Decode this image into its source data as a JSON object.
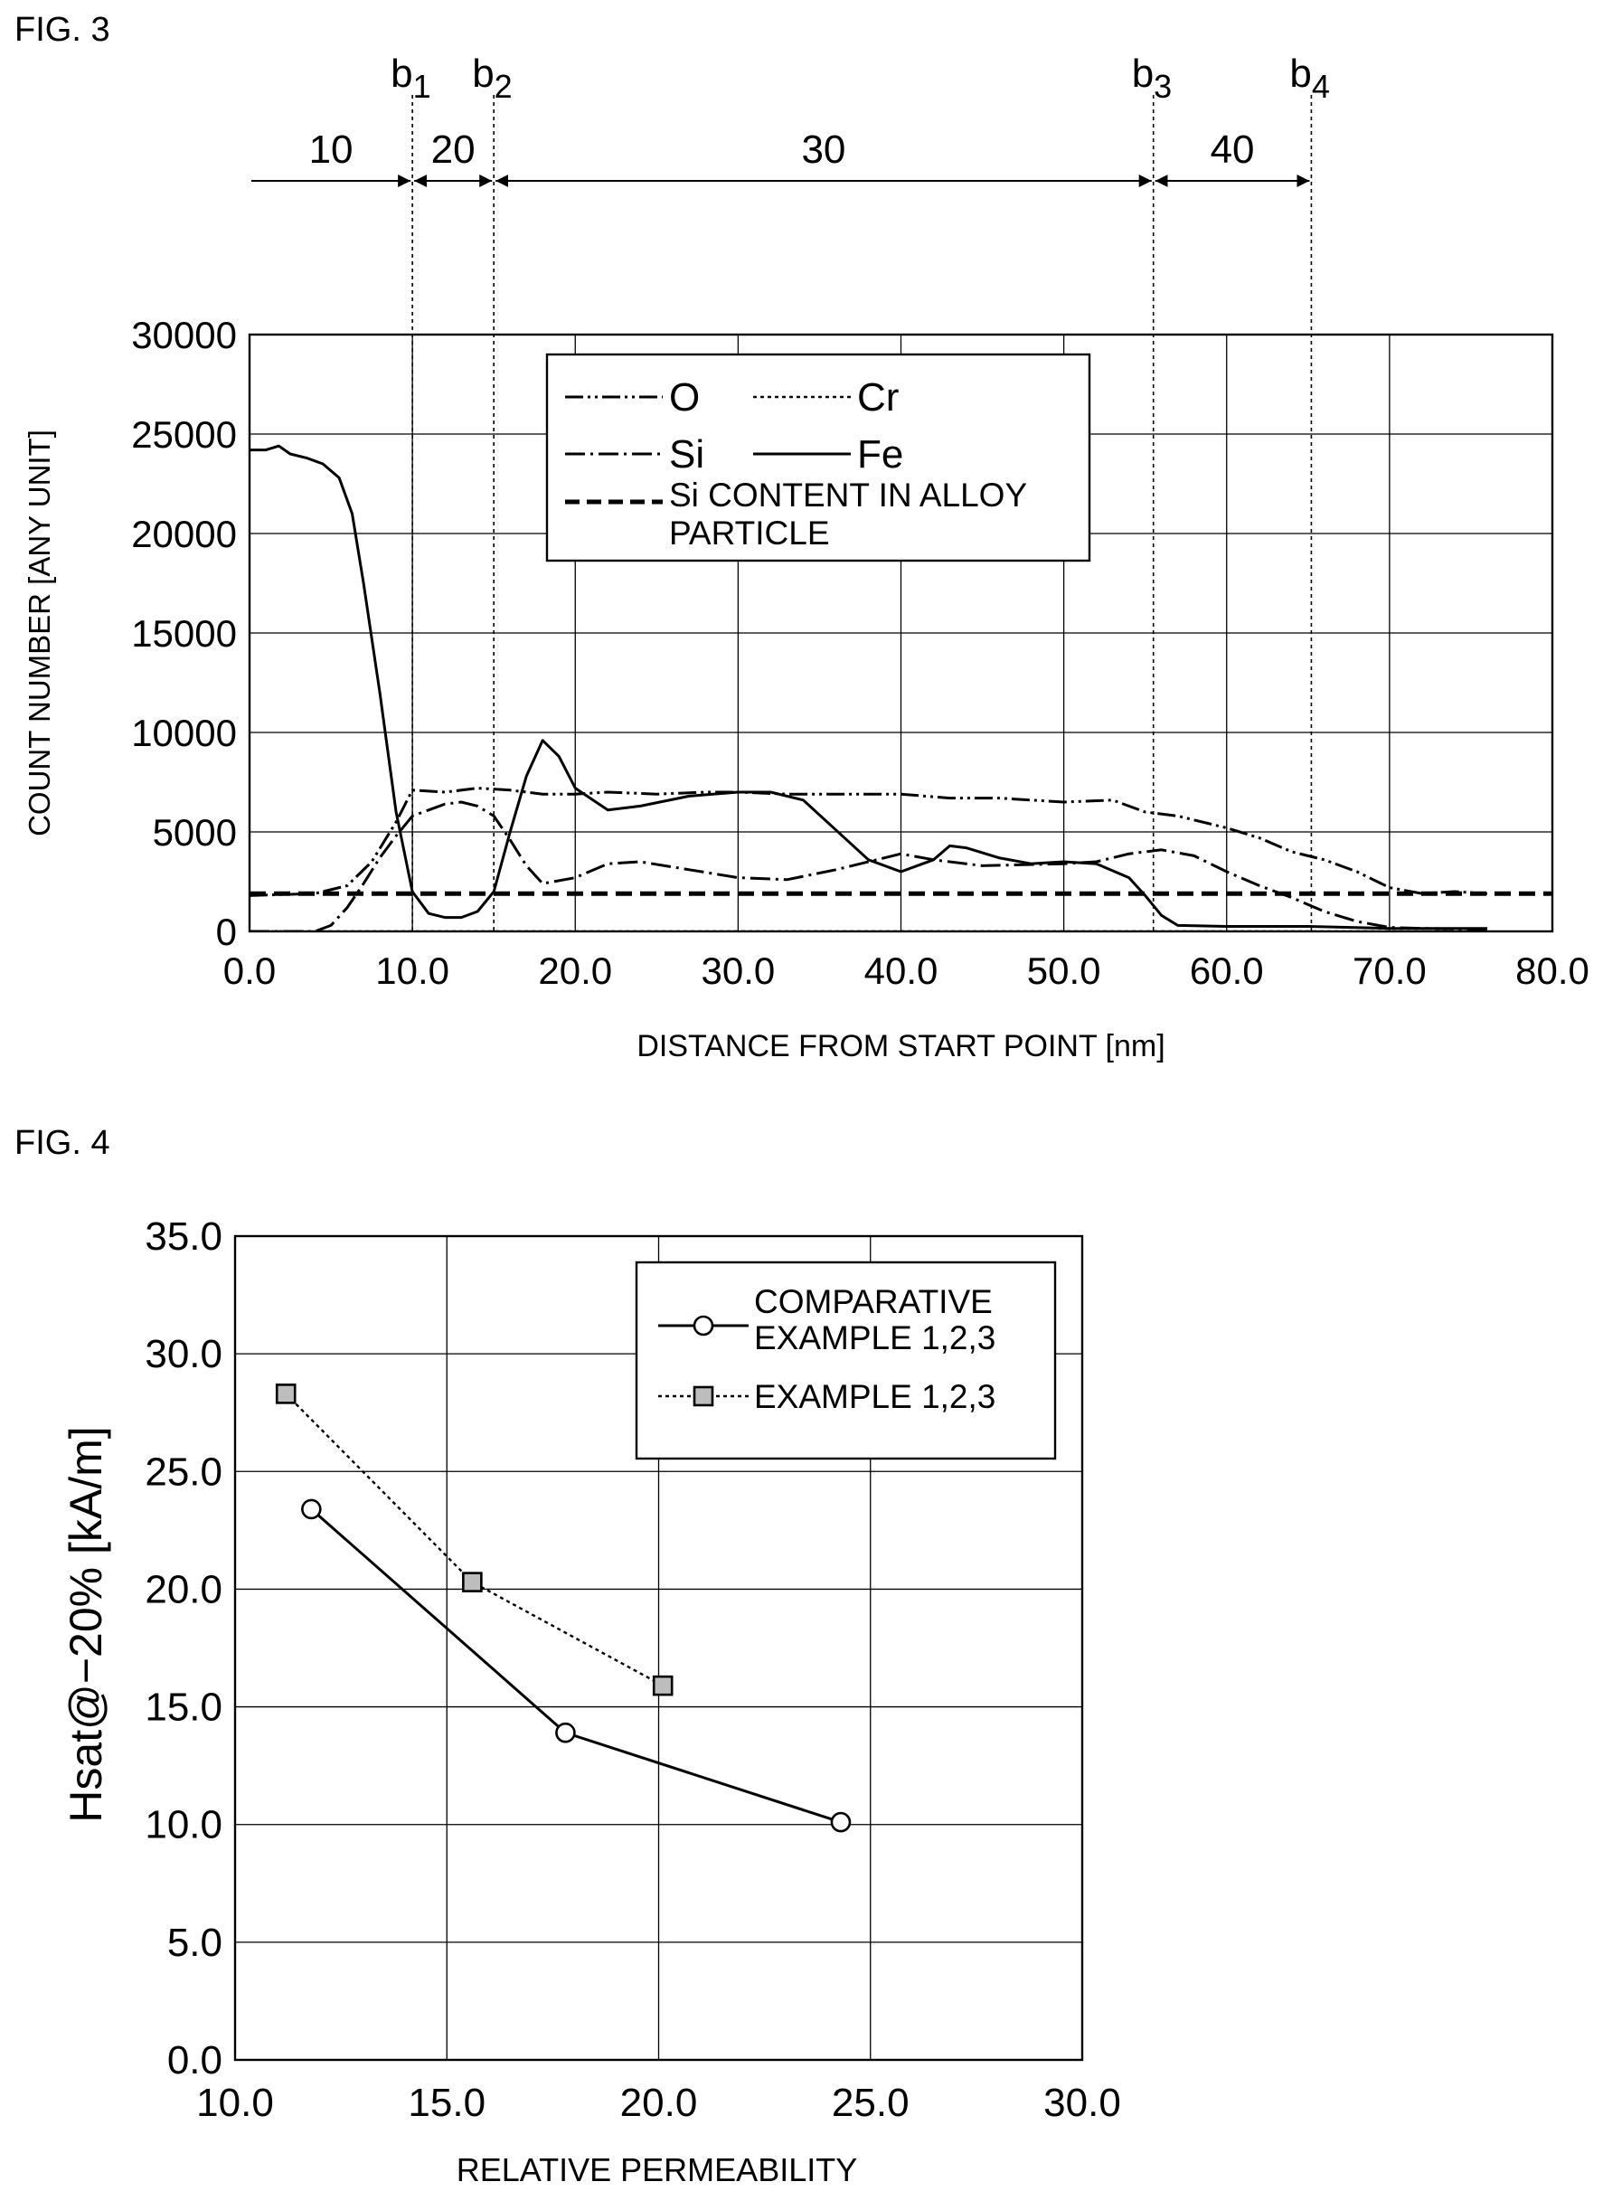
{
  "figures": {
    "fig3_label": "FIG. 3",
    "fig4_label": "FIG. 4"
  },
  "chart_data": [
    {
      "type": "line",
      "xlabel": "DISTANCE FROM START POINT [nm]",
      "ylabel": "COUNT NUMBER [ANY UNIT]",
      "xlim": [
        0,
        80
      ],
      "ylim": [
        0,
        30000
      ],
      "x_ticks": [
        "0.0",
        "10.0",
        "20.0",
        "30.0",
        "40.0",
        "50.0",
        "60.0",
        "70.0",
        "80.0"
      ],
      "y_ticks": [
        "0",
        "5000",
        "10000",
        "15000",
        "20000",
        "25000",
        "30000"
      ],
      "grid": true,
      "legend_position": "top-center",
      "boundaries": [
        {
          "label": "b",
          "sub": "1",
          "x": 10.0
        },
        {
          "label": "b",
          "sub": "2",
          "x": 15.0
        },
        {
          "label": "b",
          "sub": "3",
          "x": 55.5
        },
        {
          "label": "b",
          "sub": "4",
          "x": 65.2
        }
      ],
      "regions": [
        {
          "label": "10",
          "from": 0.0,
          "to": 10.0
        },
        {
          "label": "20",
          "from": 10.0,
          "to": 15.0
        },
        {
          "label": "30",
          "from": 15.0,
          "to": 55.5
        },
        {
          "label": "40",
          "from": 55.5,
          "to": 65.2
        }
      ],
      "series": [
        {
          "name": "O",
          "style": "dash-dot-dot",
          "points": [
            [
              0,
              1800
            ],
            [
              4,
              1900
            ],
            [
              6,
              2300
            ],
            [
              7.5,
              3500
            ],
            [
              9,
              5500
            ],
            [
              10,
              7100
            ],
            [
              12,
              7000
            ],
            [
              14,
              7200
            ],
            [
              16,
              7100
            ],
            [
              18,
              6900
            ],
            [
              20,
              6900
            ],
            [
              22,
              7000
            ],
            [
              25,
              6900
            ],
            [
              28,
              7000
            ],
            [
              30,
              7000
            ],
            [
              33,
              6900
            ],
            [
              36,
              6900
            ],
            [
              40,
              6900
            ],
            [
              43,
              6700
            ],
            [
              46,
              6700
            ],
            [
              50,
              6500
            ],
            [
              53,
              6600
            ],
            [
              55,
              6000
            ],
            [
              57,
              5800
            ],
            [
              60,
              5200
            ],
            [
              62,
              4700
            ],
            [
              64,
              4000
            ],
            [
              66,
              3600
            ],
            [
              68,
              3000
            ],
            [
              70,
              2200
            ],
            [
              72,
              1900
            ],
            [
              74,
              2000
            ],
            [
              76,
              1900
            ]
          ]
        },
        {
          "name": "Si",
          "style": "dash-dot",
          "points": [
            [
              0,
              0
            ],
            [
              4,
              0
            ],
            [
              5,
              300
            ],
            [
              6,
              1200
            ],
            [
              7,
              2400
            ],
            [
              8,
              3700
            ],
            [
              9,
              4800
            ],
            [
              10,
              5800
            ],
            [
              12,
              6400
            ],
            [
              13,
              6500
            ],
            [
              14,
              6300
            ],
            [
              15,
              5800
            ],
            [
              16,
              4600
            ],
            [
              17,
              3300
            ],
            [
              18,
              2400
            ],
            [
              20,
              2700
            ],
            [
              22,
              3400
            ],
            [
              24,
              3500
            ],
            [
              27,
              3100
            ],
            [
              30,
              2700
            ],
            [
              33,
              2600
            ],
            [
              36,
              3100
            ],
            [
              40,
              3900
            ],
            [
              42,
              3600
            ],
            [
              45,
              3300
            ],
            [
              50,
              3400
            ],
            [
              52,
              3500
            ],
            [
              54,
              3900
            ],
            [
              56,
              4100
            ],
            [
              58,
              3800
            ],
            [
              60,
              3000
            ],
            [
              62,
              2300
            ],
            [
              64,
              1700
            ],
            [
              66,
              1000
            ],
            [
              68,
              500
            ],
            [
              70,
              200
            ],
            [
              72,
              150
            ],
            [
              76,
              100
            ]
          ]
        },
        {
          "name": "Cr",
          "style": "dotted",
          "points": [
            [
              0,
              0
            ],
            [
              76,
              0
            ]
          ]
        },
        {
          "name": "Fe",
          "style": "solid",
          "points": [
            [
              0,
              24200
            ],
            [
              1,
              24200
            ],
            [
              1.8,
              24400
            ],
            [
              2.5,
              24000
            ],
            [
              3.5,
              23800
            ],
            [
              4.5,
              23500
            ],
            [
              5.5,
              22800
            ],
            [
              6.3,
              21000
            ],
            [
              7,
              17500
            ],
            [
              8,
              12000
            ],
            [
              9,
              6000
            ],
            [
              10,
              2000
            ],
            [
              11,
              900
            ],
            [
              12,
              700
            ],
            [
              13,
              700
            ],
            [
              14,
              1000
            ],
            [
              15,
              2000
            ],
            [
              16,
              5000
            ],
            [
              17,
              7800
            ],
            [
              18,
              9600
            ],
            [
              19,
              8800
            ],
            [
              20,
              7200
            ],
            [
              22,
              6100
            ],
            [
              24,
              6300
            ],
            [
              27,
              6800
            ],
            [
              30,
              7000
            ],
            [
              32,
              7000
            ],
            [
              34,
              6600
            ],
            [
              36,
              5100
            ],
            [
              38,
              3600
            ],
            [
              40,
              3000
            ],
            [
              42,
              3600
            ],
            [
              43,
              4300
            ],
            [
              44,
              4200
            ],
            [
              46,
              3700
            ],
            [
              48,
              3400
            ],
            [
              50,
              3500
            ],
            [
              52,
              3400
            ],
            [
              54,
              2700
            ],
            [
              55,
              1800
            ],
            [
              56,
              800
            ],
            [
              57,
              300
            ],
            [
              60,
              250
            ],
            [
              65,
              250
            ],
            [
              70,
              150
            ],
            [
              76,
              150
            ]
          ]
        }
      ],
      "reference_line": {
        "name": "Si CONTENT IN ALLOY PARTICLE",
        "y": 1900
      },
      "legend": [
        {
          "marker": "O",
          "label": "O"
        },
        {
          "marker": "Cr",
          "label": "Cr"
        },
        {
          "marker": "Si",
          "label": "Si"
        },
        {
          "marker": "Fe",
          "label": "Fe"
        },
        {
          "marker": "ref",
          "label": "Si CONTENT IN ALLOY",
          "label2": "PARTICLE"
        }
      ]
    },
    {
      "type": "line",
      "xlabel": "RELATIVE PERMEABILITY",
      "ylabel": "Hsat@−20% [kA/m]",
      "xlim": [
        10,
        30
      ],
      "ylim": [
        0,
        35
      ],
      "x_ticks": [
        "10.0",
        "15.0",
        "20.0",
        "25.0",
        "30.0"
      ],
      "y_ticks": [
        "0.0",
        "5.0",
        "10.0",
        "15.0",
        "20.0",
        "25.0",
        "30.0",
        "35.0"
      ],
      "grid": true,
      "legend_position": "top-right",
      "series": [
        {
          "name": "COMPARATIVE EXAMPLE 1,2,3",
          "legend_lines": [
            "COMPARATIVE",
            "EXAMPLE 1,2,3"
          ],
          "marker": "circle",
          "style": "solid",
          "points": [
            [
              11.8,
              23.4
            ],
            [
              17.8,
              13.9
            ],
            [
              24.3,
              10.1
            ]
          ]
        },
        {
          "name": "EXAMPLE 1,2,3",
          "legend_lines": [
            "EXAMPLE 1,2,3"
          ],
          "marker": "square",
          "style": "dotted",
          "points": [
            [
              11.2,
              28.3
            ],
            [
              15.6,
              20.3
            ],
            [
              20.1,
              15.9
            ]
          ]
        }
      ]
    }
  ]
}
